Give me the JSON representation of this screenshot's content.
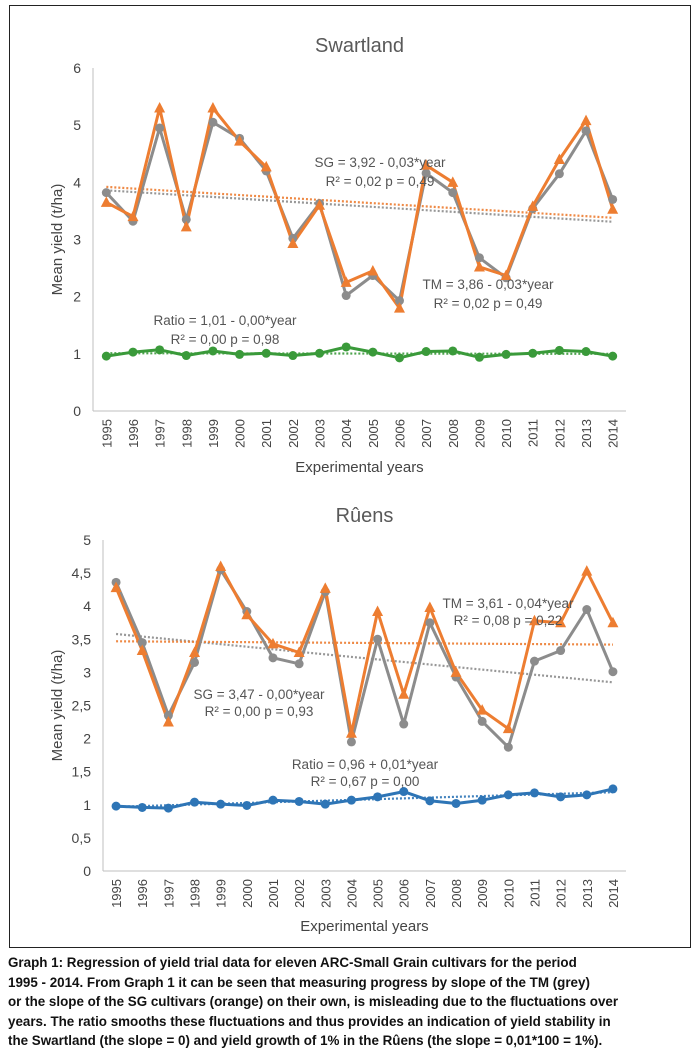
{
  "chart_data": [
    {
      "type": "line",
      "title": "Swartland",
      "xlabel": "Experimental years",
      "ylabel": "Mean yield (t/ha)",
      "ylim": [
        0,
        6
      ],
      "yticks": [
        "0",
        "1",
        "2",
        "3",
        "4",
        "5",
        "6"
      ],
      "categories": [
        "1995",
        "1996",
        "1997",
        "1998",
        "1999",
        "2000",
        "2001",
        "2002",
        "2003",
        "2004",
        "2005",
        "2006",
        "2007",
        "2008",
        "2009",
        "2010",
        "2011",
        "2012",
        "2013",
        "2014"
      ],
      "series": [
        {
          "key": "tm",
          "color": "#8c8c8c",
          "marker": "circle",
          "trend": [
            3.86,
            3.31
          ],
          "values": [
            3.82,
            3.32,
            4.95,
            3.35,
            5.05,
            4.77,
            4.2,
            3.02,
            3.63,
            2.02,
            2.37,
            1.93,
            4.16,
            3.82,
            2.68,
            2.33,
            3.54,
            4.15,
            4.9,
            3.7
          ]
        },
        {
          "key": "sg",
          "color": "#ed7d31",
          "marker": "triangle",
          "trend": [
            3.92,
            3.38
          ],
          "values": [
            3.65,
            3.4,
            5.3,
            3.22,
            5.3,
            4.72,
            4.27,
            2.93,
            3.6,
            2.25,
            2.45,
            1.8,
            4.3,
            4.0,
            2.52,
            2.37,
            3.58,
            4.4,
            5.08,
            3.53
          ]
        },
        {
          "key": "ratio",
          "color": "#3a9a3a",
          "marker": "circle",
          "trend": [
            1.01,
            1.0
          ],
          "values": [
            0.96,
            1.03,
            1.07,
            0.97,
            1.05,
            0.99,
            1.01,
            0.97,
            1.01,
            1.12,
            1.03,
            0.93,
            1.04,
            1.05,
            0.94,
            0.99,
            1.01,
            1.06,
            1.04,
            0.96
          ]
        }
      ],
      "annotations": [
        {
          "line1": "SG = 3,92 - 0,03*year",
          "line2": "R² = 0,02 p = 0,49"
        },
        {
          "line1": "TM = 3,86 - 0,03*year",
          "line2": "R² = 0,02 p = 0,49"
        },
        {
          "line1": "Ratio = 1,01 - 0,00*year",
          "line2": "R² = 0,00  p = 0,98"
        }
      ]
    },
    {
      "type": "line",
      "title": "Rûens",
      "xlabel": "Experimental years",
      "ylabel": "Mean yield (t/ha)",
      "ylim": [
        0,
        5
      ],
      "yticks": [
        "0",
        "0,5",
        "1",
        "1,5",
        "2",
        "2,5",
        "3",
        "3,5",
        "4",
        "4,5",
        "5"
      ],
      "categories": [
        "1995",
        "1996",
        "1997",
        "1998",
        "1999",
        "2000",
        "2001",
        "2002",
        "2003",
        "2004",
        "2005",
        "2006",
        "2007",
        "2008",
        "2009",
        "2010",
        "2011",
        "2012",
        "2013",
        "2014"
      ],
      "series": [
        {
          "key": "tm",
          "color": "#8c8c8c",
          "marker": "circle",
          "trend": [
            3.58,
            2.85
          ],
          "values": [
            4.36,
            3.45,
            2.35,
            3.15,
            4.55,
            3.92,
            3.22,
            3.13,
            4.22,
            1.95,
            3.5,
            2.22,
            3.75,
            2.93,
            2.26,
            1.87,
            3.17,
            3.33,
            3.95,
            3.01
          ]
        },
        {
          "key": "sg",
          "color": "#ed7d31",
          "marker": "triangle",
          "trend": [
            3.47,
            3.42
          ],
          "values": [
            4.28,
            3.33,
            2.25,
            3.3,
            4.6,
            3.87,
            3.43,
            3.3,
            4.27,
            2.08,
            3.92,
            2.67,
            3.98,
            3.0,
            2.43,
            2.15,
            3.78,
            3.75,
            4.53,
            3.75
          ]
        },
        {
          "key": "ratio",
          "color": "#2e75b6",
          "marker": "circle",
          "trend": [
            0.97,
            1.19
          ],
          "values": [
            0.98,
            0.96,
            0.95,
            1.04,
            1.01,
            0.99,
            1.07,
            1.05,
            1.01,
            1.07,
            1.12,
            1.2,
            1.06,
            1.02,
            1.07,
            1.15,
            1.18,
            1.12,
            1.15,
            1.24
          ]
        }
      ],
      "annotations": [
        {
          "line1": "TM = 3,61 - 0,04*year",
          "line2": "R² = 0,08 p = 0,22"
        },
        {
          "line1": "SG = 3,47 - 0,00*year",
          "line2": "R² = 0,00 p = 0,93"
        },
        {
          "line1": "Ratio = 0,96 + 0,01*year",
          "line2": "R² = 0,67  p = 0,00"
        }
      ]
    }
  ],
  "caption": [
    "Graph 1: Regression of yield trial data for eleven ARC-Small Grain cultivars for the period",
    "1995 - 2014. From Graph 1 it can be seen that measuring progress by slope of the TM (grey)",
    "or the slope of the SG cultivars (orange) on their own, is misleading due to the fluctuations over",
    "years. The ratio smooths these fluctuations and thus provides an indication of yield stability in",
    "the Swartland (the slope = 0) and yield growth of 1% in the Rûens (the slope = 0,01*100 = 1%)."
  ]
}
